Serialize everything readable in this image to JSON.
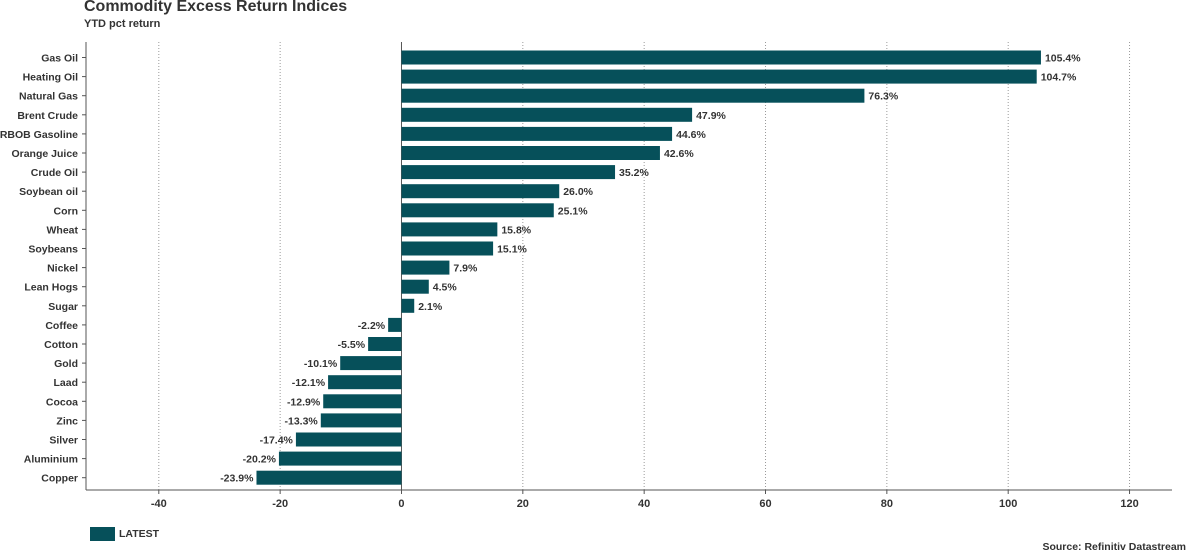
{
  "chart_data": {
    "type": "bar",
    "orientation": "horizontal",
    "title": "Commodity Excess Return Indices",
    "subtitle": "YTD pct return",
    "categories": [
      "Gas Oil",
      "Heating Oil",
      "Natural Gas",
      "Brent Crude",
      "RBOB Gasoline",
      "Orange Juice",
      "Crude Oil",
      "Soybean oil",
      "Corn",
      "Wheat",
      "Soybeans",
      "Nickel",
      "Lean Hogs",
      "Sugar",
      "Coffee",
      "Cotton",
      "Gold",
      "Laad",
      "Cocoa",
      "Zinc",
      "Silver",
      "Aluminium",
      "Copper"
    ],
    "series": [
      {
        "name": "LATEST",
        "color": "#06505a",
        "values": [
          105.4,
          104.7,
          76.3,
          47.9,
          44.6,
          42.6,
          35.2,
          26.0,
          25.1,
          15.8,
          15.1,
          7.9,
          4.5,
          2.1,
          -2.2,
          -5.5,
          -10.1,
          -12.1,
          -12.9,
          -13.3,
          -17.4,
          -20.2,
          -23.9
        ],
        "labels": [
          "105.4%",
          "104.7%",
          "76.3%",
          "47.9%",
          "44.6%",
          "42.6%",
          "35.2%",
          "26.0%",
          "25.1%",
          "15.8%",
          "15.1%",
          "7.9%",
          "4.5%",
          "2.1%",
          "-2.2%",
          "-5.5%",
          "-10.1%",
          "-12.1%",
          "-12.9%",
          "-13.3%",
          "-17.4%",
          "-20.2%",
          "-23.9%"
        ]
      }
    ],
    "xticks": [
      -40,
      -20,
      0,
      20,
      40,
      60,
      80,
      100,
      120
    ],
    "xlim": [
      -52,
      127
    ],
    "grid": "vertical dotted",
    "legend_position": "bottom-left",
    "source": "Source: Refinitiv Datastream"
  }
}
